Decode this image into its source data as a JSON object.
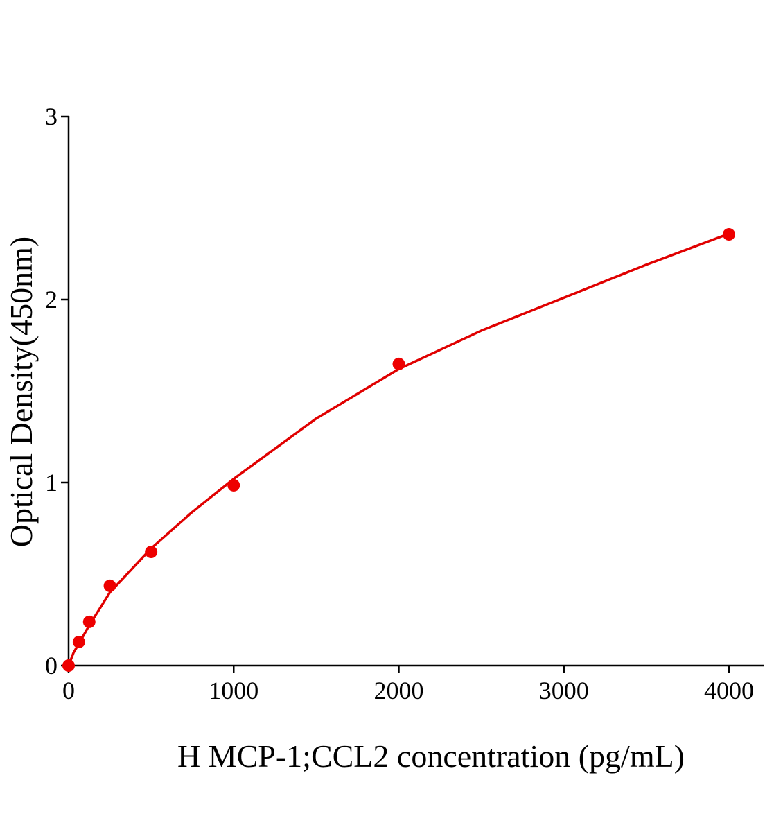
{
  "chart_data": {
    "type": "scatter",
    "x_label": "H MCP-1;CCL2 concentration (pg/mL)",
    "y_label": "Optical Density(450nm)",
    "x": [
      0,
      62.5,
      125,
      250,
      500,
      1000,
      2000,
      4000
    ],
    "series": [
      {
        "color": "#ee0000",
        "values": [
          0,
          0.129,
          0.239,
          0.436,
          0.621,
          0.985,
          1.648,
          2.356
        ]
      }
    ],
    "fit": {
      "color": "#e00000",
      "x": [
        0,
        30,
        62.5,
        125,
        250,
        500,
        750,
        1000,
        1500,
        2000,
        2500,
        3000,
        3500,
        4000
      ],
      "values": [
        0,
        0.07,
        0.12,
        0.22,
        0.4,
        0.64,
        0.84,
        1.02,
        1.35,
        1.62,
        1.83,
        2.01,
        2.19,
        2.36
      ]
    },
    "xlim": [
      0,
      4210
    ],
    "xticks": [
      0,
      1000,
      2000,
      3000,
      4000
    ],
    "ylim": [
      0,
      3
    ],
    "yticks": [
      0,
      1,
      2,
      3
    ]
  }
}
